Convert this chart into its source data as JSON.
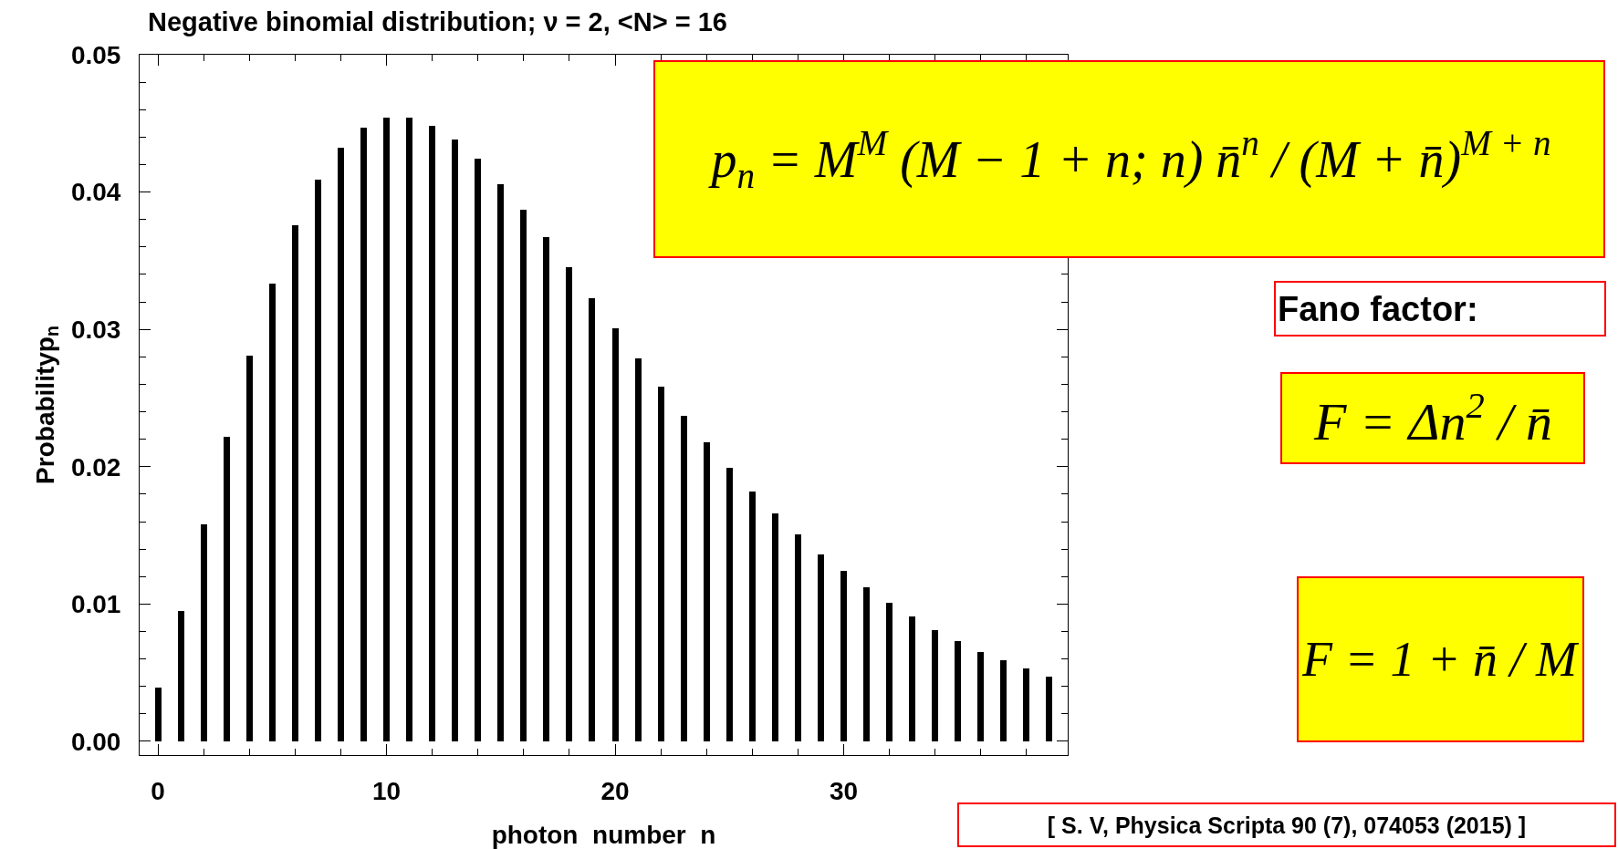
{
  "chart_data": {
    "type": "bar",
    "title": "Negative binomial distribution; ν = 2, <N> = 16",
    "xlabel": "photon  number  n",
    "ylabel": "Probabilityp$_{n}$",
    "annotations": [
      "p$_{n}$ = M$^{M}$ (M − 1 + n; n) n̄$^{n}$ / (M + n̄)$^{M + n}$",
      "Fano factor:",
      "F = Δn$^{2}$ / n̄",
      "F = 1 + n̄ / M",
      "[ S. V, Physica Scripta 90 (7), 074053 (2015) ]"
    ],
    "x": [
      0,
      1,
      2,
      3,
      4,
      5,
      6,
      7,
      8,
      9,
      10,
      11,
      12,
      13,
      14,
      15,
      16,
      17,
      18,
      19,
      20,
      21,
      22,
      23,
      24,
      25,
      26,
      27,
      28,
      29,
      30,
      31,
      32,
      33,
      34,
      35,
      36,
      37,
      38,
      39
    ],
    "values": [
      0.0039,
      0.0095,
      0.0158,
      0.0222,
      0.0281,
      0.0333,
      0.0376,
      0.0409,
      0.0432,
      0.0447,
      0.0454,
      0.0454,
      0.0448,
      0.0438,
      0.0424,
      0.0406,
      0.0387,
      0.0367,
      0.0345,
      0.0323,
      0.0301,
      0.0279,
      0.0258,
      0.0237,
      0.0218,
      0.0199,
      0.0182,
      0.0166,
      0.0151,
      0.0136,
      0.0124,
      0.0112,
      0.0101,
      0.0091,
      0.0081,
      0.0073,
      0.0065,
      0.0059,
      0.0053,
      0.0047
    ],
    "color": "#000000",
    "xlim": [
      -0.8,
      39.8
    ],
    "ylim": [
      -0.001,
      0.05
    ],
    "xticks": [
      0,
      {
        "value": 2,
        "label": null
      },
      {
        "value": 4,
        "label": null
      },
      {
        "value": 6,
        "label": null
      },
      {
        "value": 8,
        "label": null
      },
      10,
      {
        "value": 12,
        "label": null
      },
      {
        "value": 14,
        "label": null
      },
      {
        "value": 16,
        "label": null
      },
      {
        "value": 18,
        "label": null
      },
      20,
      {
        "value": 22,
        "label": null
      },
      {
        "value": 24,
        "label": null
      },
      {
        "value": 26,
        "label": null
      },
      {
        "value": 28,
        "label": null
      },
      30,
      {
        "value": 32,
        "label": null
      },
      {
        "value": 34,
        "label": null
      },
      {
        "value": 36,
        "label": null
      },
      {
        "value": 38,
        "label": null
      }
    ],
    "yticks": [
      {
        "value": 0,
        "label": "0.00"
      },
      {
        "value": 0.002,
        "label": null
      },
      {
        "value": 0.004,
        "label": null
      },
      {
        "value": 0.006,
        "label": null
      },
      {
        "value": 0.008,
        "label": null
      },
      0.01,
      {
        "value": 0.012,
        "label": null
      },
      {
        "value": 0.014,
        "label": null
      },
      {
        "value": 0.016,
        "label": null
      },
      {
        "value": 0.018,
        "label": null
      },
      0.02,
      {
        "value": 0.022,
        "label": null
      },
      {
        "value": 0.024,
        "label": null
      },
      {
        "value": 0.026,
        "label": null
      },
      {
        "value": 0.028,
        "label": null
      },
      0.03,
      {
        "value": 0.032,
        "label": null
      },
      {
        "value": 0.034,
        "label": null
      },
      {
        "value": 0.036,
        "label": null
      },
      {
        "value": 0.038,
        "label": null
      },
      0.04,
      {
        "value": 0.042,
        "label": null
      },
      {
        "value": 0.044,
        "label": null
      },
      {
        "value": 0.046,
        "label": null
      },
      {
        "value": 0.048,
        "label": null
      },
      0.05
    ]
  }
}
